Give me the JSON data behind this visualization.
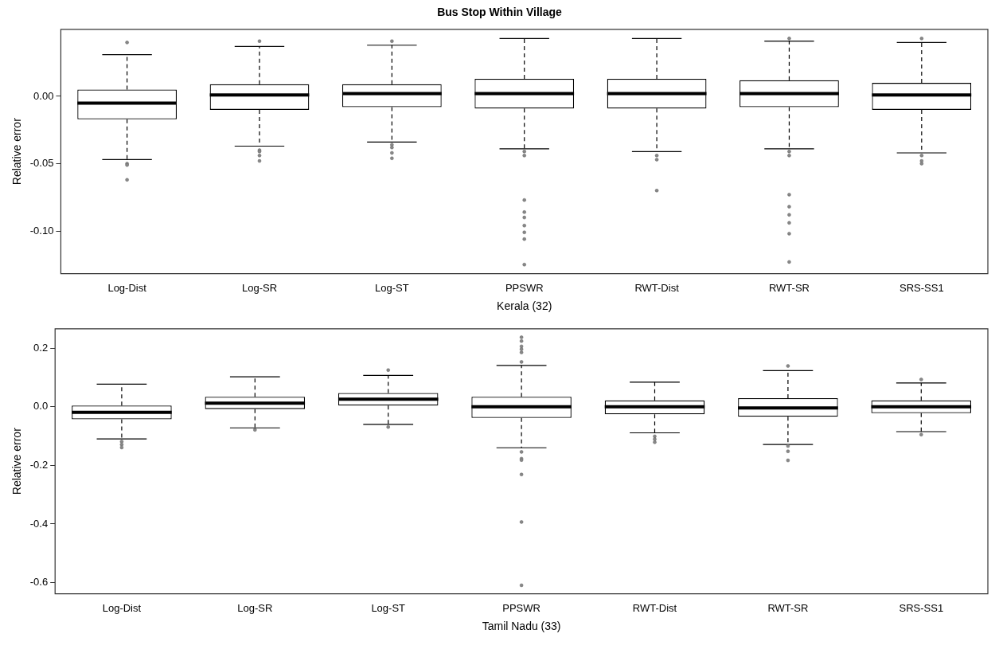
{
  "chart_data": [
    {
      "type": "box",
      "title": "Bus Stop Within Village",
      "xlabel": "Kerala (32)",
      "ylabel": "Relative error",
      "categories": [
        "Log-Dist",
        "Log-SR",
        "Log-ST",
        "PPSWR",
        "RWT-Dist",
        "RWT-SR",
        "SRS-SS1"
      ],
      "boxes": [
        {
          "low": -0.047,
          "q1": -0.017,
          "median": -0.005,
          "q3": 0.005,
          "high": 0.031,
          "outliers": [
            0.04,
            -0.05,
            -0.051,
            -0.062
          ]
        },
        {
          "low": -0.037,
          "q1": -0.01,
          "median": 0.001,
          "q3": 0.009,
          "high": 0.037,
          "outliers": [
            0.041,
            -0.04,
            -0.041,
            -0.044,
            -0.048
          ]
        },
        {
          "low": -0.034,
          "q1": -0.008,
          "median": 0.002,
          "q3": 0.009,
          "high": 0.038,
          "outliers": [
            0.041,
            -0.036,
            -0.038,
            -0.042,
            -0.046
          ]
        },
        {
          "low": -0.039,
          "q1": -0.009,
          "median": 0.002,
          "q3": 0.013,
          "high": 0.043,
          "outliers": [
            -0.041,
            -0.044,
            -0.077,
            -0.086,
            -0.09,
            -0.096,
            -0.101,
            -0.106,
            -0.125
          ]
        },
        {
          "low": -0.041,
          "q1": -0.009,
          "median": 0.002,
          "q3": 0.013,
          "high": 0.043,
          "outliers": [
            -0.044,
            -0.047,
            -0.07
          ]
        },
        {
          "low": -0.039,
          "q1": -0.008,
          "median": 0.002,
          "q3": 0.012,
          "high": 0.041,
          "outliers": [
            0.043,
            -0.041,
            -0.044,
            -0.073,
            -0.082,
            -0.088,
            -0.094,
            -0.102,
            -0.123
          ]
        },
        {
          "low": -0.042,
          "q1": -0.01,
          "median": 0.001,
          "q3": 0.01,
          "high": 0.04,
          "outliers": [
            0.043,
            -0.044,
            -0.048,
            -0.05
          ]
        }
      ],
      "ylim": [
        -0.1317,
        0.0498
      ],
      "yticks": [
        {
          "value": -0.1,
          "label": "-0.10"
        },
        {
          "value": -0.05,
          "label": "-0.05"
        },
        {
          "value": 0,
          "label": "0.00"
        }
      ]
    },
    {
      "type": "box",
      "xlabel": "Tamil Nadu (33)",
      "ylabel": "Relative error",
      "categories": [
        "Log-Dist",
        "Log-SR",
        "Log-ST",
        "PPSWR",
        "RWT-Dist",
        "RWT-SR",
        "SRS-SS1"
      ],
      "boxes": [
        {
          "low": -0.11,
          "q1": -0.043,
          "median": -0.019,
          "q3": 0.004,
          "high": 0.077,
          "outliers": [
            -0.119,
            -0.129,
            -0.139
          ]
        },
        {
          "low": -0.072,
          "q1": -0.008,
          "median": 0.012,
          "q3": 0.034,
          "high": 0.102,
          "outliers": [
            -0.079
          ]
        },
        {
          "low": -0.06,
          "q1": 0.004,
          "median": 0.026,
          "q3": 0.047,
          "high": 0.107,
          "outliers": [
            0.125,
            -0.069
          ]
        },
        {
          "low": -0.14,
          "q1": -0.038,
          "median": 0.0,
          "q3": 0.034,
          "high": 0.141,
          "outliers": [
            0.237,
            0.224,
            0.206,
            0.196,
            0.185,
            0.153,
            -0.154,
            -0.177,
            -0.182,
            -0.231,
            -0.393,
            -0.609
          ]
        },
        {
          "low": -0.089,
          "q1": -0.026,
          "median": 0.0,
          "q3": 0.022,
          "high": 0.084,
          "outliers": [
            -0.101,
            -0.111,
            -0.121
          ]
        },
        {
          "low": -0.129,
          "q1": -0.034,
          "median": -0.004,
          "q3": 0.029,
          "high": 0.123,
          "outliers": [
            0.139,
            -0.134,
            -0.152,
            -0.183
          ]
        },
        {
          "low": -0.085,
          "q1": -0.022,
          "median": 0.0,
          "q3": 0.022,
          "high": 0.081,
          "outliers": [
            0.093,
            -0.095
          ]
        }
      ],
      "ylim": [
        -0.638,
        0.266
      ],
      "yticks": [
        {
          "value": -0.6,
          "label": "-0.6"
        },
        {
          "value": -0.4,
          "label": "-0.4"
        },
        {
          "value": -0.2,
          "label": "-0.2"
        },
        {
          "value": 0,
          "label": "0.0"
        },
        {
          "value": 0.2,
          "label": "0.2"
        }
      ]
    }
  ]
}
